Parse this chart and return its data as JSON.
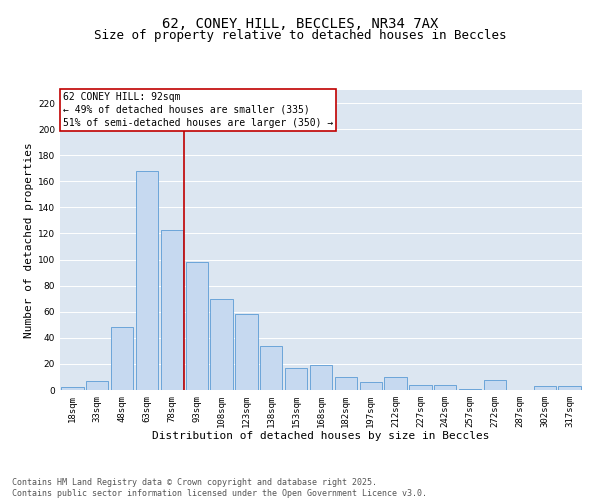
{
  "title_line1": "62, CONEY HILL, BECCLES, NR34 7AX",
  "title_line2": "Size of property relative to detached houses in Beccles",
  "xlabel": "Distribution of detached houses by size in Beccles",
  "ylabel": "Number of detached properties",
  "bar_color": "#c6d9f0",
  "bar_edge_color": "#5b9bd5",
  "background_color": "#dce6f1",
  "categories": [
    "18sqm",
    "33sqm",
    "48sqm",
    "63sqm",
    "78sqm",
    "93sqm",
    "108sqm",
    "123sqm",
    "138sqm",
    "153sqm",
    "168sqm",
    "182sqm",
    "197sqm",
    "212sqm",
    "227sqm",
    "242sqm",
    "257sqm",
    "272sqm",
    "287sqm",
    "302sqm",
    "317sqm"
  ],
  "values": [
    2,
    7,
    48,
    168,
    123,
    98,
    70,
    58,
    34,
    17,
    19,
    10,
    6,
    10,
    4,
    4,
    1,
    8,
    0,
    3,
    3
  ],
  "vline_x": 4.5,
  "vline_color": "#c00000",
  "annotation_text": "62 CONEY HILL: 92sqm\n← 49% of detached houses are smaller (335)\n51% of semi-detached houses are larger (350) →",
  "ylim": [
    0,
    230
  ],
  "yticks": [
    0,
    20,
    40,
    60,
    80,
    100,
    120,
    140,
    160,
    180,
    200,
    220
  ],
  "footer_text": "Contains HM Land Registry data © Crown copyright and database right 2025.\nContains public sector information licensed under the Open Government Licence v3.0.",
  "title_fontsize": 10,
  "subtitle_fontsize": 9,
  "axis_label_fontsize": 8,
  "tick_fontsize": 6.5,
  "annotation_fontsize": 7,
  "footer_fontsize": 6
}
